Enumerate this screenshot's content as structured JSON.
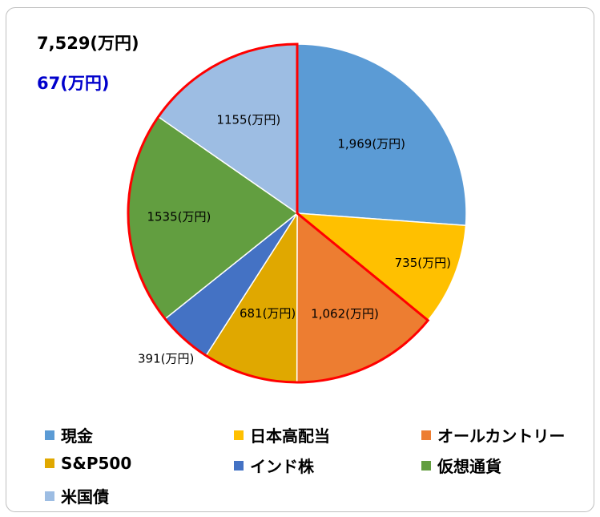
{
  "header": {
    "total": "7,529(万円)",
    "gain": "67(万円)"
  },
  "chart_data": {
    "type": "pie",
    "unit": "(万円)",
    "slices": [
      {
        "name": "現金",
        "value": 1969,
        "label": "1,969(万円)",
        "color": "#5B9BD5"
      },
      {
        "name": "日本高配当",
        "value": 735,
        "label": "735(万円)",
        "color": "#FFC000"
      },
      {
        "name": "オールカントリー",
        "value": 1062,
        "label": "1,062(万円)",
        "color": "#ED7D31"
      },
      {
        "name": "S&P500",
        "value": 681,
        "label": "681(万円)",
        "color": "#E0A800"
      },
      {
        "name": "インド株",
        "value": 391,
        "label": "391(万円)",
        "color": "#4472C4"
      },
      {
        "name": "仮想通貨",
        "value": 1535,
        "label": "1535(万円)",
        "color": "#629E40"
      },
      {
        "name": "米国債",
        "value": 1155,
        "label": "1155(万円)",
        "color": "#9DBDE3"
      }
    ],
    "highlight": {
      "from": 2,
      "to": 6,
      "color": "#FF0000"
    },
    "legend_placement": "bottom"
  }
}
